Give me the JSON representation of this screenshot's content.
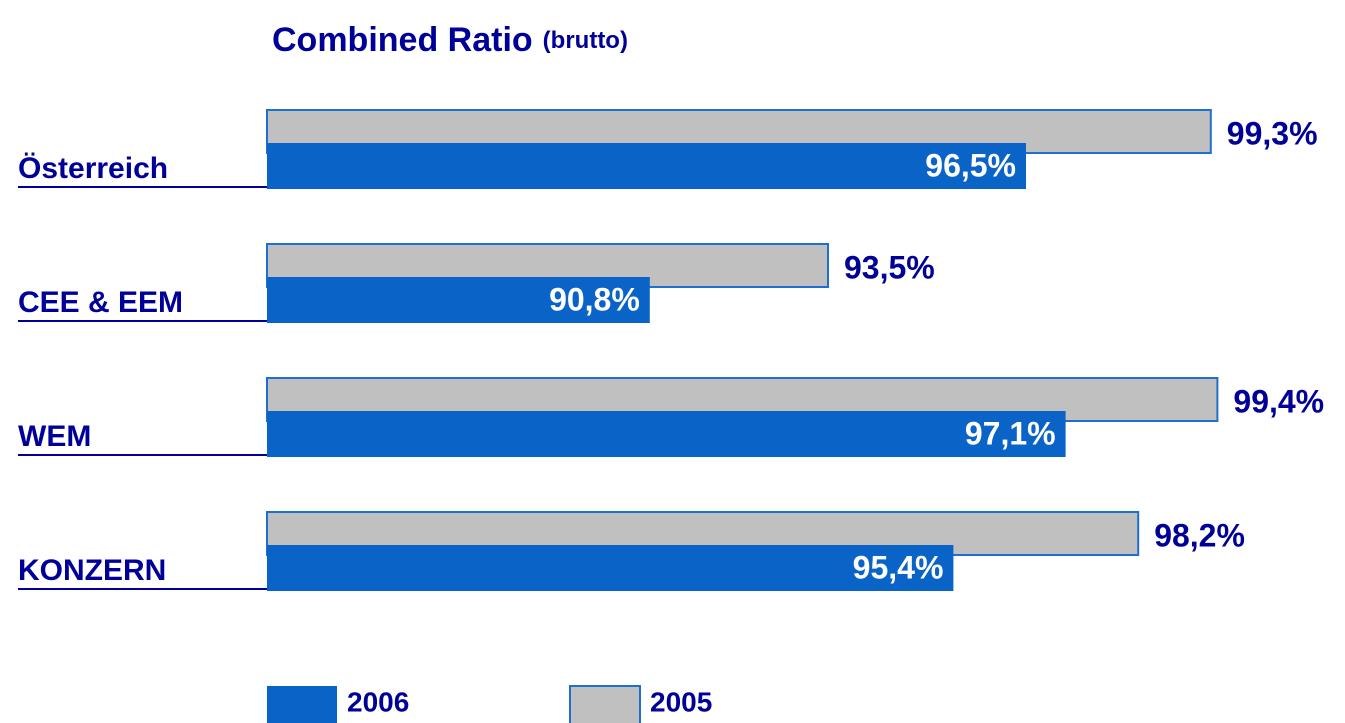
{
  "chart_data": {
    "type": "bar",
    "orientation": "horizontal",
    "title": "Combined Ratio",
    "subtitle": "(brutto)",
    "categories": [
      "Österreich",
      "CEE & EEM",
      "WEM",
      "KONZERN"
    ],
    "xlim": [
      85,
      101
    ],
    "series": [
      {
        "name": "2006",
        "color": "#0a64c8",
        "values": [
          96.5,
          90.8,
          97.1,
          95.4
        ],
        "value_labels": [
          "96,5%",
          "90,8%",
          "97,1%",
          "95,4%"
        ]
      },
      {
        "name": "2005",
        "color": "#c0c0c0",
        "values": [
          99.3,
          93.5,
          99.4,
          98.2
        ],
        "value_labels": [
          "99,3%",
          "93,5%",
          "99,4%",
          "98,2%"
        ]
      }
    ],
    "legend": "bottom"
  }
}
